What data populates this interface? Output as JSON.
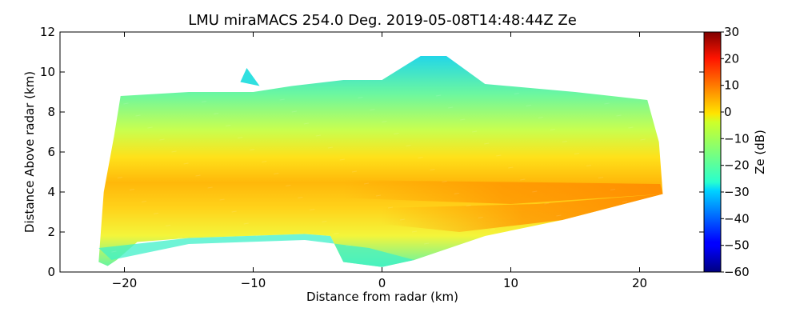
{
  "chart_data": {
    "type": "heatmap",
    "title": "LMU miraMACS 254.0 Deg. 2019-05-08T14:48:44Z  Ze",
    "xlabel": "Distance from radar (km)",
    "ylabel": "Distance Above radar  (km)",
    "xlim": [
      -25,
      25
    ],
    "ylim": [
      0,
      12
    ],
    "x_ticks": [
      -20,
      -10,
      0,
      10,
      20
    ],
    "x_tick_labels": [
      "−20",
      "−10",
      "0",
      "10",
      "20"
    ],
    "y_ticks": [
      0,
      2,
      4,
      6,
      8,
      10,
      12
    ],
    "y_tick_labels": [
      "0",
      "2",
      "4",
      "6",
      "8",
      "10",
      "12"
    ],
    "colorbar": {
      "label": "Ze (dB)",
      "range": [
        -60,
        30
      ],
      "colormap": "jet",
      "ticks": [
        30,
        20,
        10,
        0,
        -10,
        -20,
        -30,
        -40,
        -50,
        -60
      ],
      "tick_labels": [
        "30",
        "20",
        "10",
        "0",
        "−10",
        "−20",
        "−30",
        "−40",
        "−50",
        "−60"
      ]
    },
    "field": {
      "description": "radar reflectivity RHI scan",
      "left_edge_km": -22,
      "right_edge_km": 21.8,
      "cloud_top_km": [
        9,
        10.8
      ],
      "cloud_base_left_km": 0.5,
      "layers": [
        {
          "z_km": 10.0,
          "ze_db": -28
        },
        {
          "z_km": 8.0,
          "ze_db": -20
        },
        {
          "z_km": 6.0,
          "ze_db": -10
        },
        {
          "z_km": 4.2,
          "ze_db": 3
        },
        {
          "z_km": 2.5,
          "ze_db": 5
        },
        {
          "z_km": 1.0,
          "ze_db": -18
        }
      ],
      "grid": false
    }
  }
}
